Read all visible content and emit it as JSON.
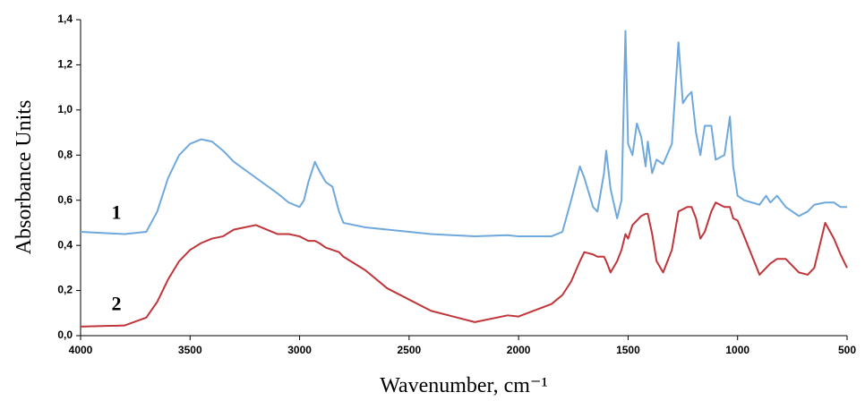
{
  "chart_data": {
    "type": "line",
    "x_label": "Wavenumber, cm⁻¹",
    "y_label": "Absorbance Units",
    "x": [
      4000,
      3800,
      3700,
      3650,
      3600,
      3550,
      3500,
      3450,
      3400,
      3350,
      3300,
      3200,
      3100,
      3050,
      3000,
      2980,
      2960,
      2930,
      2910,
      2880,
      2850,
      2820,
      2800,
      2700,
      2600,
      2400,
      2200,
      2050,
      2000,
      1850,
      1800,
      1760,
      1720,
      1700,
      1660,
      1640,
      1610,
      1600,
      1580,
      1550,
      1530,
      1512,
      1500,
      1480,
      1460,
      1440,
      1420,
      1410,
      1390,
      1370,
      1340,
      1300,
      1270,
      1250,
      1230,
      1210,
      1190,
      1170,
      1150,
      1120,
      1100,
      1060,
      1035,
      1020,
      1000,
      970,
      900,
      870,
      850,
      820,
      780,
      720,
      680,
      650,
      600,
      560,
      530,
      500
    ],
    "series": [
      {
        "name": "1",
        "color": "#6fa8dc",
        "values": [
          0.46,
          0.45,
          0.46,
          0.55,
          0.7,
          0.8,
          0.85,
          0.87,
          0.86,
          0.82,
          0.77,
          0.7,
          0.63,
          0.59,
          0.57,
          0.6,
          0.68,
          0.77,
          0.73,
          0.68,
          0.66,
          0.55,
          0.5,
          0.48,
          0.47,
          0.45,
          0.44,
          0.445,
          0.44,
          0.44,
          0.46,
          0.6,
          0.75,
          0.7,
          0.57,
          0.55,
          0.72,
          0.82,
          0.65,
          0.52,
          0.6,
          1.35,
          0.85,
          0.8,
          0.94,
          0.88,
          0.75,
          0.86,
          0.72,
          0.78,
          0.76,
          0.85,
          1.3,
          1.03,
          1.06,
          1.08,
          0.9,
          0.8,
          0.93,
          0.93,
          0.78,
          0.8,
          0.97,
          0.75,
          0.62,
          0.6,
          0.58,
          0.62,
          0.59,
          0.62,
          0.57,
          0.53,
          0.55,
          0.58,
          0.59,
          0.59,
          0.57,
          0.57
        ]
      },
      {
        "name": "2",
        "color": "#c0353a",
        "values": [
          0.04,
          0.045,
          0.08,
          0.15,
          0.25,
          0.33,
          0.38,
          0.41,
          0.43,
          0.44,
          0.47,
          0.49,
          0.45,
          0.45,
          0.44,
          0.43,
          0.42,
          0.42,
          0.41,
          0.39,
          0.38,
          0.37,
          0.35,
          0.29,
          0.21,
          0.11,
          0.06,
          0.09,
          0.085,
          0.14,
          0.18,
          0.24,
          0.33,
          0.37,
          0.36,
          0.35,
          0.35,
          0.33,
          0.28,
          0.33,
          0.38,
          0.45,
          0.43,
          0.49,
          0.51,
          0.53,
          0.54,
          0.54,
          0.45,
          0.33,
          0.28,
          0.38,
          0.55,
          0.56,
          0.57,
          0.57,
          0.52,
          0.43,
          0.46,
          0.55,
          0.59,
          0.57,
          0.57,
          0.52,
          0.51,
          0.44,
          0.27,
          0.3,
          0.32,
          0.34,
          0.34,
          0.28,
          0.27,
          0.3,
          0.5,
          0.43,
          0.36,
          0.3
        ]
      }
    ],
    "xlim": [
      4000,
      500
    ],
    "xticks": [
      4000,
      3500,
      3000,
      2500,
      2000,
      1500,
      1000,
      500
    ],
    "ylim": [
      0,
      1.4
    ],
    "yticks": [
      {
        "value": 0,
        "label": "0,0"
      },
      {
        "value": 0.2,
        "label": "0,2"
      },
      {
        "value": 0.4,
        "label": "0,4"
      },
      {
        "value": 0.6,
        "label": "0,6"
      },
      {
        "value": 0.8,
        "label": "0,8"
      },
      {
        "value": 1.0,
        "label": "1,0"
      },
      {
        "value": 1.2,
        "label": "1,2"
      },
      {
        "value": 1.4,
        "label": "1,4"
      }
    ]
  }
}
